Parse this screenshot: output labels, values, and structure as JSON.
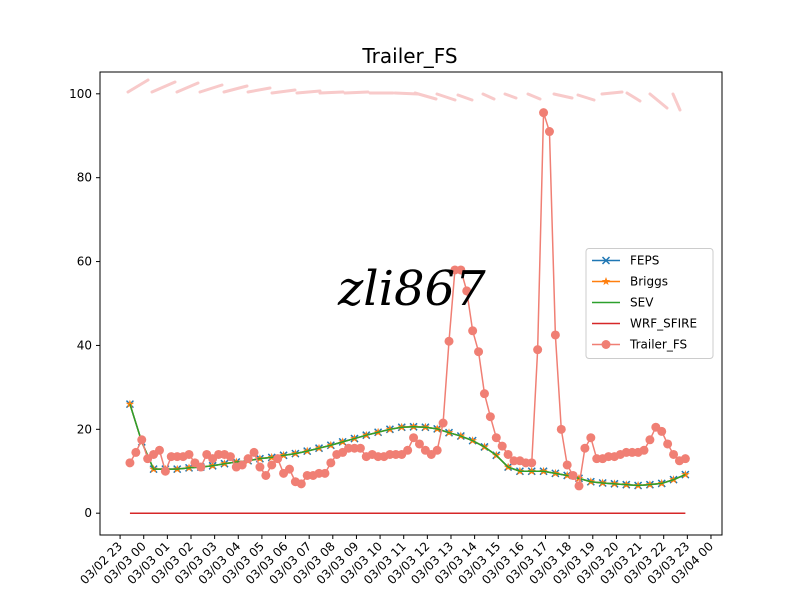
{
  "chart_data": {
    "type": "line",
    "title": "Trailer_FS",
    "watermark": "zli867",
    "legend": "center right",
    "grid": false,
    "xlim": [
      "03/02 22:09",
      "03/04 00:28"
    ],
    "xticks": [
      "03/02 23",
      "03/03 00",
      "03/03 01",
      "03/03 02",
      "03/03 03",
      "03/03 04",
      "03/03 05",
      "03/03 06",
      "03/03 07",
      "03/03 08",
      "03/03 09",
      "03/03 10",
      "03/03 11",
      "03/03 12",
      "03/03 13",
      "03/03 14",
      "03/03 15",
      "03/03 16",
      "03/03 17",
      "03/03 18",
      "03/03 19",
      "03/03 20",
      "03/03 21",
      "03/03 22",
      "03/03 23",
      "03/04 00"
    ],
    "ylim": [
      -5.2,
      105.2
    ],
    "yticks": [
      0,
      20,
      40,
      60,
      80,
      100
    ],
    "series": [
      {
        "name": "FEPS",
        "color": "#1f77b4",
        "marker": "x",
        "x": [
          "03/02 23:25",
          "03/02 23:55",
          "03/03 00:25",
          "03/03 00:55",
          "03/03 01:25",
          "03/03 01:55",
          "03/03 02:25",
          "03/03 02:55",
          "03/03 03:25",
          "03/03 03:55",
          "03/03 04:25",
          "03/03 04:55",
          "03/03 05:25",
          "03/03 05:55",
          "03/03 06:25",
          "03/03 06:55",
          "03/03 07:25",
          "03/03 07:55",
          "03/03 08:25",
          "03/03 08:55",
          "03/03 09:25",
          "03/03 09:55",
          "03/03 10:25",
          "03/03 10:55",
          "03/03 11:25",
          "03/03 11:55",
          "03/03 12:25",
          "03/03 12:55",
          "03/03 13:25",
          "03/03 13:55",
          "03/03 14:25",
          "03/03 14:55",
          "03/03 15:25",
          "03/03 15:55",
          "03/03 16:25",
          "03/03 16:55",
          "03/03 17:25",
          "03/03 17:55",
          "03/03 18:25",
          "03/03 18:55",
          "03/03 19:25",
          "03/03 19:55",
          "03/03 20:25",
          "03/03 20:55",
          "03/03 21:25",
          "03/03 21:55",
          "03/03 22:25",
          "03/03 22:55"
        ],
        "values": [
          26,
          17,
          10.5,
          10.5,
          10.5,
          10.8,
          11,
          11.3,
          11.8,
          12.2,
          12.5,
          13,
          13.3,
          13.8,
          14.2,
          14.8,
          15.5,
          16.2,
          17,
          17.8,
          18.6,
          19.3,
          20,
          20.5,
          20.6,
          20.5,
          20.1,
          19.2,
          18.4,
          17.3,
          15.8,
          13.8,
          11,
          10,
          10,
          10,
          9.5,
          9,
          8.3,
          7.5,
          7.2,
          7,
          6.8,
          6.6,
          6.8,
          7.1,
          8,
          9.2
        ]
      },
      {
        "name": "Briggs",
        "color": "#ff7f0e",
        "marker": "star",
        "x": [
          "03/02 23:25",
          "03/02 23:55",
          "03/03 00:25",
          "03/03 00:55",
          "03/03 01:25",
          "03/03 01:55",
          "03/03 02:25",
          "03/03 02:55",
          "03/03 03:25",
          "03/03 03:55",
          "03/03 04:25",
          "03/03 04:55",
          "03/03 05:25",
          "03/03 05:55",
          "03/03 06:25",
          "03/03 06:55",
          "03/03 07:25",
          "03/03 07:55",
          "03/03 08:25",
          "03/03 08:55",
          "03/03 09:25",
          "03/03 09:55",
          "03/03 10:25",
          "03/03 10:55",
          "03/03 11:25",
          "03/03 11:55",
          "03/03 12:25",
          "03/03 12:55",
          "03/03 13:25",
          "03/03 13:55",
          "03/03 14:25",
          "03/03 14:55",
          "03/03 15:25",
          "03/03 15:55",
          "03/03 16:25",
          "03/03 16:55",
          "03/03 17:25",
          "03/03 17:55",
          "03/03 18:25",
          "03/03 18:55",
          "03/03 19:25",
          "03/03 19:55",
          "03/03 20:25",
          "03/03 20:55",
          "03/03 21:25",
          "03/03 21:55",
          "03/03 22:25",
          "03/03 22:55"
        ],
        "values": [
          26,
          17,
          10.5,
          10.5,
          10.5,
          10.8,
          11,
          11.3,
          11.8,
          12.2,
          12.5,
          13,
          13.3,
          13.8,
          14.2,
          14.8,
          15.5,
          16.2,
          17,
          17.8,
          18.6,
          19.3,
          20,
          20.5,
          20.6,
          20.5,
          20.1,
          19.2,
          18.4,
          17.3,
          15.8,
          13.8,
          11,
          10,
          10,
          10,
          9.5,
          9,
          8.3,
          7.5,
          7.2,
          7,
          6.8,
          6.6,
          6.8,
          7.1,
          8,
          9.2
        ]
      },
      {
        "name": "SEV",
        "color": "#2ca02c",
        "marker": "none",
        "x": [
          "03/02 23:25",
          "03/02 23:55",
          "03/03 00:25",
          "03/03 00:55",
          "03/03 01:25",
          "03/03 01:55",
          "03/03 02:25",
          "03/03 02:55",
          "03/03 03:25",
          "03/03 03:55",
          "03/03 04:25",
          "03/03 04:55",
          "03/03 05:25",
          "03/03 05:55",
          "03/03 06:25",
          "03/03 06:55",
          "03/03 07:25",
          "03/03 07:55",
          "03/03 08:25",
          "03/03 08:55",
          "03/03 09:25",
          "03/03 09:55",
          "03/03 10:25",
          "03/03 10:55",
          "03/03 11:25",
          "03/03 11:55",
          "03/03 12:25",
          "03/03 12:55",
          "03/03 13:25",
          "03/03 13:55",
          "03/03 14:25",
          "03/03 14:55",
          "03/03 15:25",
          "03/03 15:55",
          "03/03 16:25",
          "03/03 16:55",
          "03/03 17:25",
          "03/03 17:55",
          "03/03 18:25",
          "03/03 18:55",
          "03/03 19:25",
          "03/03 19:55",
          "03/03 20:25",
          "03/03 20:55",
          "03/03 21:25",
          "03/03 21:55",
          "03/03 22:25",
          "03/03 22:55"
        ],
        "values": [
          26,
          17,
          10.5,
          10.5,
          10.5,
          10.8,
          11,
          11.3,
          11.8,
          12.2,
          12.5,
          13,
          13.3,
          13.8,
          14.2,
          14.8,
          15.5,
          16.2,
          17,
          17.8,
          18.6,
          19.3,
          20,
          20.5,
          20.6,
          20.5,
          20.1,
          19.2,
          18.4,
          17.3,
          15.8,
          13.8,
          11,
          10,
          10,
          10,
          9.5,
          9,
          8.3,
          7.5,
          7.2,
          7,
          6.8,
          6.6,
          6.8,
          7.1,
          8,
          9.2
        ]
      },
      {
        "name": "WRF_SFIRE",
        "color": "#d62728",
        "marker": "none",
        "x": [
          "03/02 23:25",
          "03/02 23:55",
          "03/03 00:25",
          "03/03 00:55",
          "03/03 01:25",
          "03/03 01:55",
          "03/03 02:25",
          "03/03 02:55",
          "03/03 03:25",
          "03/03 03:55",
          "03/03 04:25",
          "03/03 04:55",
          "03/03 05:25",
          "03/03 05:55",
          "03/03 06:25",
          "03/03 06:55",
          "03/03 07:25",
          "03/03 07:55",
          "03/03 08:25",
          "03/03 08:55",
          "03/03 09:25",
          "03/03 09:55",
          "03/03 10:25",
          "03/03 10:55",
          "03/03 11:25",
          "03/03 11:55",
          "03/03 12:25",
          "03/03 12:55",
          "03/03 13:25",
          "03/03 13:55",
          "03/03 14:25",
          "03/03 14:55",
          "03/03 15:25",
          "03/03 15:55",
          "03/03 16:25",
          "03/03 16:55",
          "03/03 17:25",
          "03/03 17:55",
          "03/03 18:25",
          "03/03 18:55",
          "03/03 19:25",
          "03/03 19:55",
          "03/03 20:25",
          "03/03 20:55",
          "03/03 21:25",
          "03/03 21:55",
          "03/03 22:25",
          "03/03 22:55"
        ],
        "values": [
          0,
          0,
          0,
          0,
          0,
          0,
          0,
          0,
          0,
          0,
          0,
          0,
          0,
          0,
          0,
          0,
          0,
          0,
          0,
          0,
          0,
          0,
          0,
          0,
          0,
          0,
          0,
          0,
          0,
          0,
          0,
          0,
          0,
          0,
          0,
          0,
          0,
          0,
          0,
          0,
          0,
          0,
          0,
          0,
          0,
          0,
          0,
          0
        ]
      },
      {
        "name": "Trailer_FS",
        "color": "#f07f74",
        "marker": "circle",
        "x": [
          "03/02 23:25",
          "03/02 23:40",
          "03/02 23:55",
          "03/03 00:10",
          "03/03 00:25",
          "03/03 00:40",
          "03/03 00:55",
          "03/03 01:10",
          "03/03 01:25",
          "03/03 01:40",
          "03/03 01:55",
          "03/03 02:10",
          "03/03 02:25",
          "03/03 02:40",
          "03/03 02:55",
          "03/03 03:10",
          "03/03 03:25",
          "03/03 03:40",
          "03/03 03:55",
          "03/03 04:10",
          "03/03 04:25",
          "03/03 04:40",
          "03/03 04:55",
          "03/03 05:10",
          "03/03 05:25",
          "03/03 05:40",
          "03/03 05:55",
          "03/03 06:10",
          "03/03 06:25",
          "03/03 06:40",
          "03/03 06:55",
          "03/03 07:10",
          "03/03 07:25",
          "03/03 07:40",
          "03/03 07:55",
          "03/03 08:10",
          "03/03 08:25",
          "03/03 08:40",
          "03/03 08:55",
          "03/03 09:10",
          "03/03 09:25",
          "03/03 09:40",
          "03/03 09:55",
          "03/03 10:10",
          "03/03 10:25",
          "03/03 10:40",
          "03/03 10:55",
          "03/03 11:10",
          "03/03 11:25",
          "03/03 11:40",
          "03/03 11:55",
          "03/03 12:10",
          "03/03 12:25",
          "03/03 12:40",
          "03/03 12:55",
          "03/03 13:10",
          "03/03 13:25",
          "03/03 13:40",
          "03/03 13:55",
          "03/03 14:10",
          "03/03 14:25",
          "03/03 14:40",
          "03/03 14:55",
          "03/03 15:10",
          "03/03 15:25",
          "03/03 15:40",
          "03/03 15:55",
          "03/03 16:10",
          "03/03 16:25",
          "03/03 16:40",
          "03/03 16:55",
          "03/03 17:10",
          "03/03 17:25",
          "03/03 17:40",
          "03/03 17:55",
          "03/03 18:10",
          "03/03 18:25",
          "03/03 18:40",
          "03/03 18:55",
          "03/03 19:10",
          "03/03 19:25",
          "03/03 19:40",
          "03/03 19:55",
          "03/03 20:10",
          "03/03 20:25",
          "03/03 20:40",
          "03/03 20:55",
          "03/03 21:10",
          "03/03 21:25",
          "03/03 21:40",
          "03/03 21:55",
          "03/03 22:10",
          "03/03 22:25",
          "03/03 22:40",
          "03/03 22:55"
        ],
        "values": [
          12,
          14.5,
          17.5,
          13,
          14,
          15,
          10,
          13.5,
          13.5,
          13.5,
          14,
          12,
          11,
          14,
          13,
          14,
          14,
          13.5,
          11,
          11.5,
          13,
          14.5,
          11,
          9,
          11.5,
          13,
          9.5,
          10.5,
          7.5,
          7,
          9,
          9,
          9.5,
          9.5,
          12,
          14,
          14.5,
          15.5,
          15.5,
          15.5,
          13.5,
          14,
          13.5,
          13.5,
          14,
          14,
          14,
          15,
          18,
          16.5,
          15,
          14,
          15,
          21.5,
          41,
          58,
          58,
          53,
          43.5,
          38.5,
          28.5,
          23,
          18,
          16,
          14,
          12.5,
          12.5,
          12,
          12,
          39,
          95.5,
          91,
          42.5,
          20,
          11.5,
          9,
          6.5,
          15.5,
          18,
          13,
          13,
          13.5,
          13.5,
          14,
          14.5,
          14.5,
          14.5,
          15,
          17.5,
          20.5,
          19.5,
          16.5,
          14,
          12.5,
          13
        ]
      }
    ]
  }
}
